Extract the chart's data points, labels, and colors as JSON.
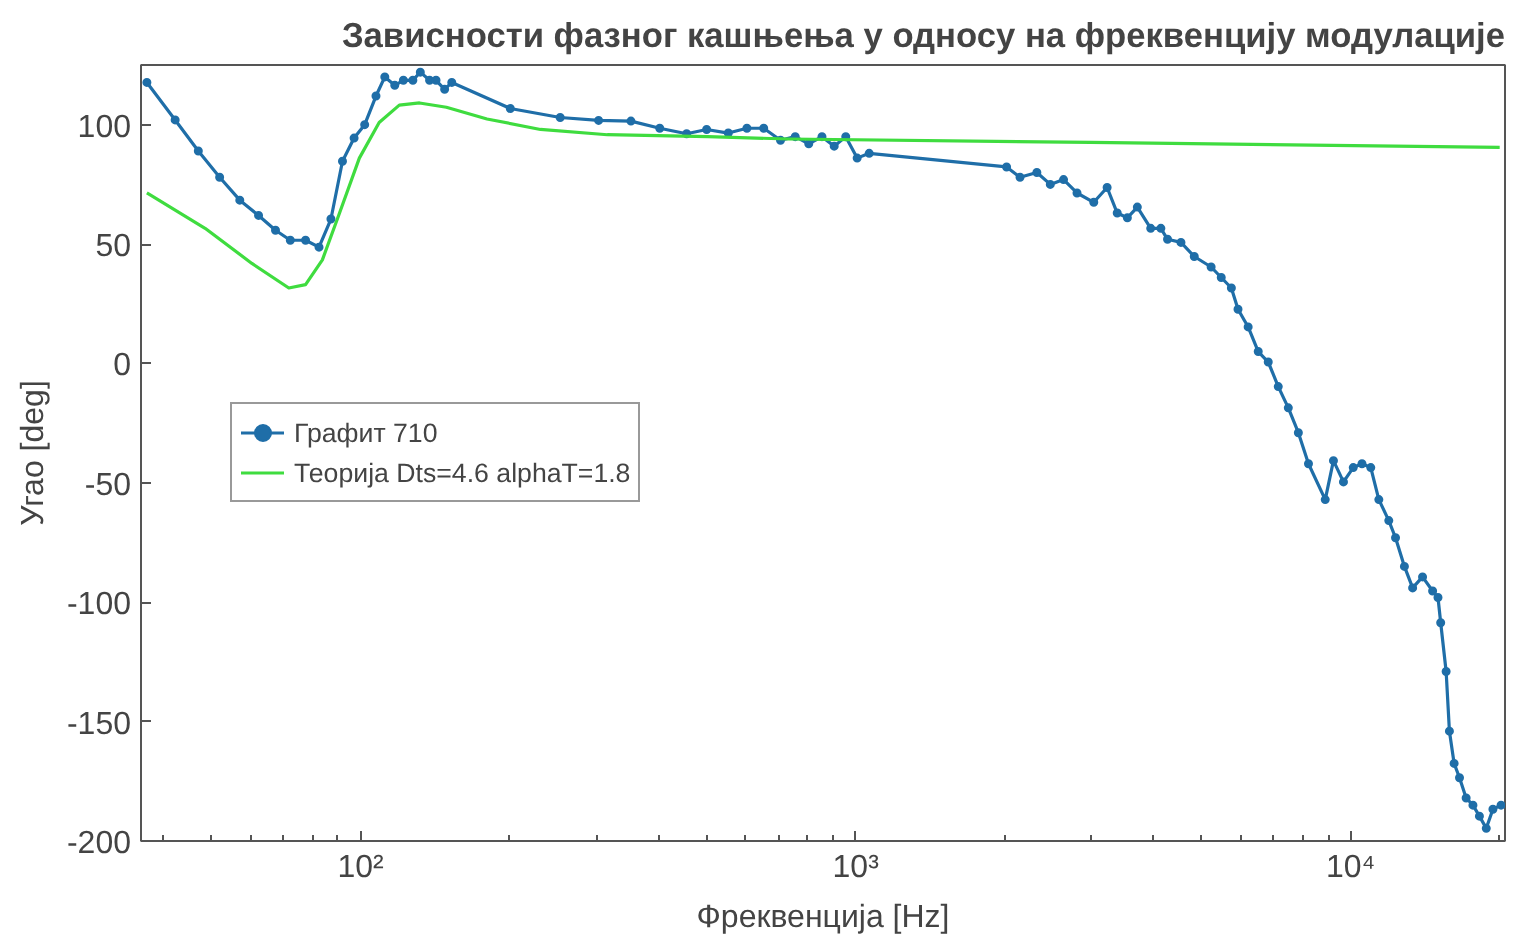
{
  "chart_data": {
    "type": "line",
    "title": "Зависности фазног кашњења у односу на фреквенцију модулације",
    "xlabel": "Фреквенција [Hz]",
    "ylabel": "Угао [deg]",
    "log": "x",
    "xlim": [
      36,
      20500
    ],
    "ylim": [
      -200,
      125
    ],
    "xticks": [
      {
        "value": 100,
        "label": "10²"
      },
      {
        "value": 1000,
        "label": "10³"
      },
      {
        "value": 10000,
        "label": "10⁴"
      }
    ],
    "yticks": [
      -200,
      -150,
      -100,
      -50,
      0,
      50,
      100
    ],
    "grid": false,
    "legend": "left",
    "series": [
      {
        "name": "Графит 710",
        "color": "#1f6ea8",
        "marker": "circle",
        "x": [
          37,
          42.2,
          47,
          51.9,
          57,
          62.2,
          67.3,
          72.1,
          77.4,
          82.4,
          87.1,
          91.9,
          97,
          101.9,
          107.4,
          111.9,
          117.2,
          122,
          127.5,
          132,
          137.8,
          142,
          147.8,
          152.8,
          200.6,
          253,
          302.5,
          351.6,
          402,
          455.6,
          500,
          553,
          603,
          652,
          705,
          755,
          804,
          855,
          905,
          955,
          1007,
          1065,
          2018,
          2148,
          2323,
          2473,
          2630,
          2800,
          3027,
          3221,
          3376,
          3539,
          3707,
          3945,
          4136,
          4266,
          4541,
          4831,
          5225,
          5477,
          5741,
          5921,
          6207,
          6505,
          6815,
          7140,
          7482,
          7840,
          8218,
          8884,
          9230,
          9670,
          10120,
          10540,
          10980,
          11400,
          11940,
          12320,
          12840,
          13340,
          13970,
          14640,
          15010,
          15200,
          15590,
          15830,
          16180,
          16590,
          17110,
          17660,
          18200,
          18790,
          19380,
          20130
        ],
        "values": [
          117.7,
          102,
          89,
          78,
          68.4,
          62,
          55.8,
          51.6,
          51.6,
          48.7,
          60.5,
          84.7,
          94.4,
          100,
          112,
          120,
          116.5,
          118.6,
          118.6,
          122,
          118.6,
          118.6,
          114.8,
          117.7,
          106.8,
          103,
          101.8,
          101.5,
          98.5,
          96.2,
          98,
          96.5,
          98.5,
          98.5,
          93.5,
          95,
          92,
          95,
          91,
          95,
          86,
          88,
          82.3,
          78,
          80,
          75,
          77,
          71.4,
          67.5,
          73.7,
          63,
          61,
          65.5,
          56.6,
          56.6,
          52,
          50.7,
          44.8,
          40.4,
          36,
          31.6,
          22.7,
          15.3,
          5,
          0.6,
          -9.7,
          -18.6,
          -29,
          -42,
          -57,
          -40.7,
          -49.6,
          -43.6,
          -42,
          -43.6,
          -57,
          -65.8,
          -73,
          -85,
          -94,
          -89.4,
          -95.3,
          -98,
          -108.6,
          -129,
          -154,
          -167.5,
          -173.5,
          -182,
          -185,
          -189.6,
          -194.7,
          -186.7,
          -185
        ]
      },
      {
        "name": "Теорија Dts=4.6 alphaT=1.8",
        "color": "#3fdc3f",
        "marker": "none",
        "x": [
          37,
          48.5,
          60.3,
          71.6,
          77.4,
          83.7,
          90.5,
          99.4,
          109,
          119.7,
          131.5,
          149,
          180,
          230.8,
          315,
          503,
          732,
          2983,
          20000
        ],
        "values": [
          71.4,
          56.6,
          41.9,
          31.6,
          33,
          43.4,
          62.6,
          86,
          100.9,
          108.2,
          109.1,
          107.3,
          102.4,
          98,
          95.8,
          95,
          94,
          92.6,
          90.5
        ]
      }
    ]
  }
}
